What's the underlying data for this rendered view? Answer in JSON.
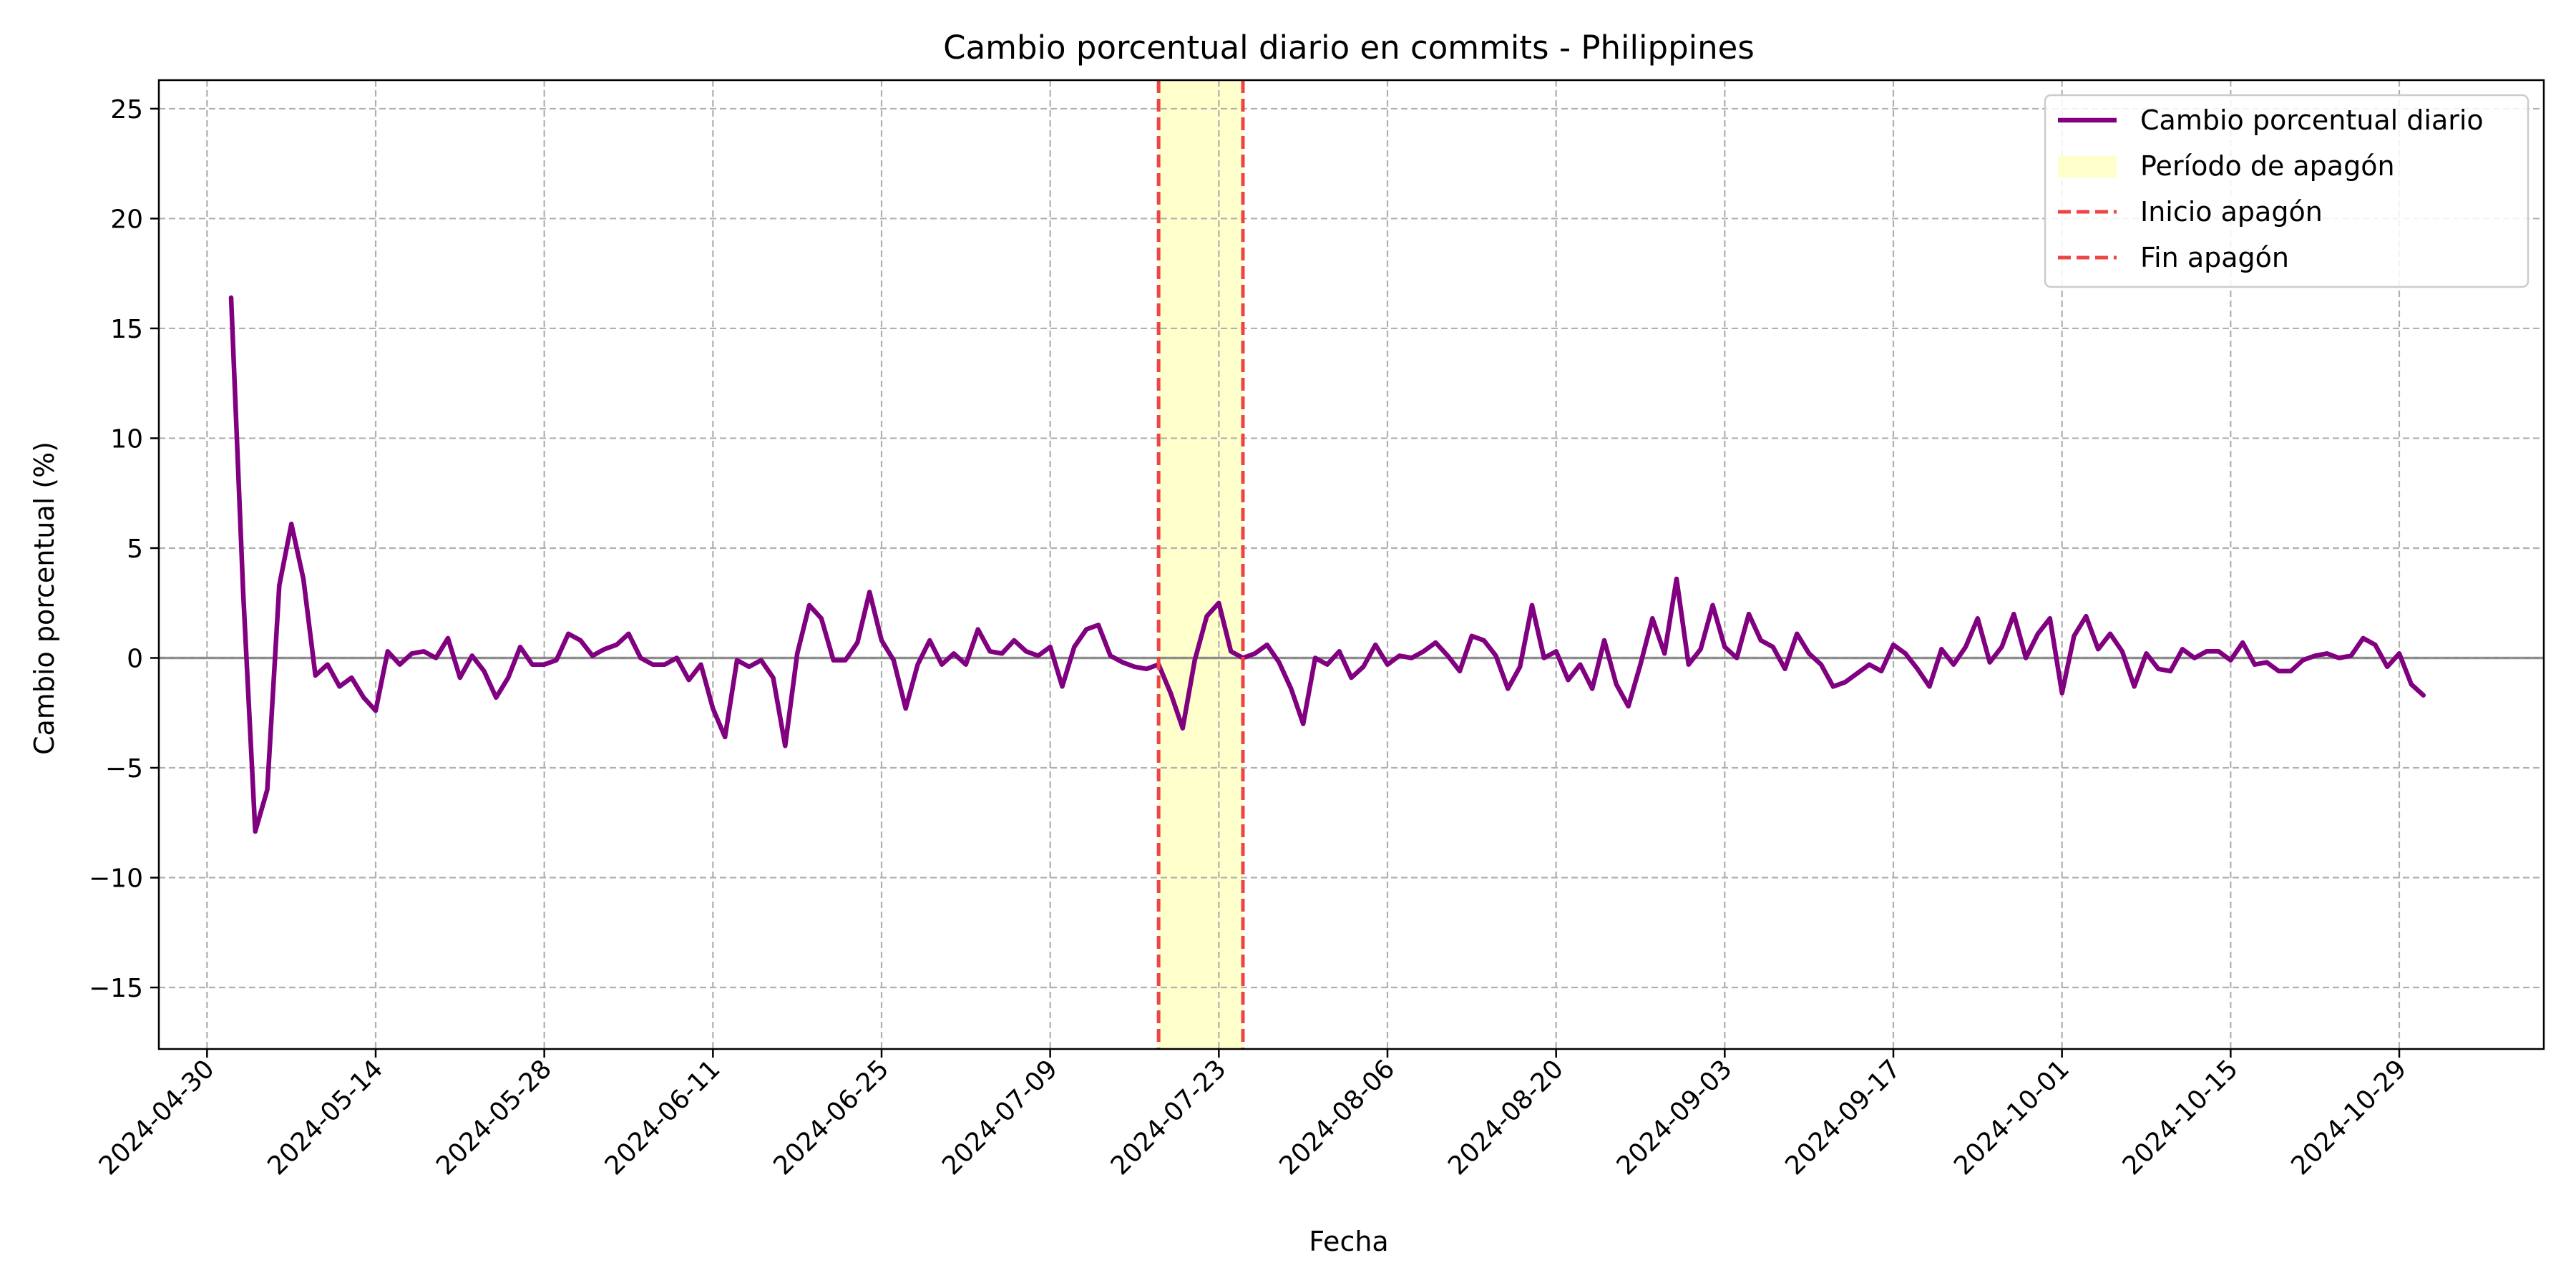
{
  "chart_data": {
    "type": "line",
    "title": "Cambio porcentual diario en commits - Philippines",
    "xlabel": "Fecha",
    "ylabel": "Cambio porcentual (%)",
    "xlim": [
      "2024-04-26",
      "2024-11-10"
    ],
    "ylim": [
      -17.8,
      26.3
    ],
    "grid": true,
    "legend_position": "top-right",
    "x_ticks": [
      "2024-04-30",
      "2024-05-14",
      "2024-05-28",
      "2024-06-11",
      "2024-06-25",
      "2024-07-09",
      "2024-07-23",
      "2024-08-06",
      "2024-08-20",
      "2024-09-03",
      "2024-09-17",
      "2024-10-01",
      "2024-10-15",
      "2024-10-29"
    ],
    "y_ticks": [
      {
        "value": 25,
        "label": "25"
      },
      {
        "value": 20,
        "label": "20"
      },
      {
        "value": 15,
        "label": "15"
      },
      {
        "value": 10,
        "label": "10"
      },
      {
        "value": 5,
        "label": "5"
      },
      {
        "value": 0,
        "label": "0"
      },
      {
        "value": -5,
        "label": "−5"
      },
      {
        "value": -10,
        "label": "−10"
      },
      {
        "value": -15,
        "label": "−15"
      }
    ],
    "series": [
      {
        "name": "Cambio porcentual diario",
        "color": "#800080",
        "start_date": "2024-05-02",
        "values": [
          16.4,
          3.0,
          -7.9,
          -6.0,
          3.3,
          6.1,
          3.6,
          -0.8,
          -0.3,
          -1.3,
          -0.9,
          -1.8,
          -2.4,
          0.3,
          -0.3,
          0.2,
          0.3,
          0.0,
          0.9,
          -0.9,
          0.1,
          -0.6,
          -1.8,
          -0.9,
          0.5,
          -0.3,
          -0.3,
          -0.1,
          1.1,
          0.8,
          0.1,
          0.4,
          0.6,
          1.1,
          0.0,
          -0.3,
          -0.3,
          0.0,
          -1.0,
          -0.3,
          -2.3,
          -3.6,
          -0.1,
          -0.4,
          -0.1,
          -0.9,
          -4.0,
          0.2,
          2.4,
          1.8,
          -0.1,
          -0.1,
          0.7,
          3.0,
          0.8,
          -0.1,
          -2.3,
          -0.3,
          0.8,
          -0.3,
          0.2,
          -0.3,
          1.3,
          0.3,
          0.2,
          0.8,
          0.3,
          0.1,
          0.5,
          -1.3,
          0.5,
          1.3,
          1.5,
          0.1,
          -0.2,
          -0.4,
          -0.5,
          -0.3,
          -1.6,
          -3.2,
          -0.1,
          1.9,
          2.5,
          0.3,
          0.0,
          0.2,
          0.6,
          -0.2,
          -1.4,
          -3.0,
          0.0,
          -0.3,
          0.3,
          -0.9,
          -0.4,
          0.6,
          -0.3,
          0.1,
          0.0,
          0.3,
          0.7,
          0.1,
          -0.6,
          1.0,
          0.8,
          0.1,
          -1.4,
          -0.4,
          2.4,
          0.0,
          0.3,
          -1.0,
          -0.3,
          -1.4,
          0.8,
          -1.2,
          -2.2,
          -0.3,
          1.8,
          0.2,
          3.6,
          -0.3,
          0.4,
          2.4,
          0.5,
          0.0,
          2.0,
          0.8,
          0.5,
          -0.5,
          1.1,
          0.2,
          -0.3,
          -1.3,
          -1.1,
          -0.7,
          -0.3,
          -0.6,
          0.6,
          0.2,
          -0.5,
          -1.3,
          0.4,
          -0.3,
          0.5,
          1.8,
          -0.2,
          0.5,
          2.0,
          0.0,
          1.1,
          1.8,
          -1.6,
          1.0,
          1.9,
          0.4,
          1.1,
          0.3,
          -1.3,
          0.2,
          -0.5,
          -0.6,
          0.4,
          0.0,
          0.3,
          0.3,
          -0.1,
          0.7,
          -0.3,
          -0.2,
          -0.6,
          -0.6,
          -0.1,
          0.1,
          0.2,
          0.0,
          0.1,
          0.9,
          0.6,
          -0.4,
          0.2,
          -1.2,
          -1.7
        ]
      }
    ],
    "zero_line": {
      "value": 0,
      "color": "#808080"
    },
    "blackout": {
      "start": "2024-07-18",
      "end": "2024-07-25",
      "fill_color": "#ffffcc",
      "line_color": "#ee4444"
    },
    "legend": [
      {
        "label": "Cambio porcentual diario",
        "kind": "line",
        "color": "#800080"
      },
      {
        "label": "Período de apagón",
        "kind": "patch",
        "color": "#ffffcc"
      },
      {
        "label": "Inicio apagón",
        "kind": "dashed",
        "color": "#ee4444"
      },
      {
        "label": "Fin apagón",
        "kind": "dashed",
        "color": "#ee4444"
      }
    ]
  }
}
